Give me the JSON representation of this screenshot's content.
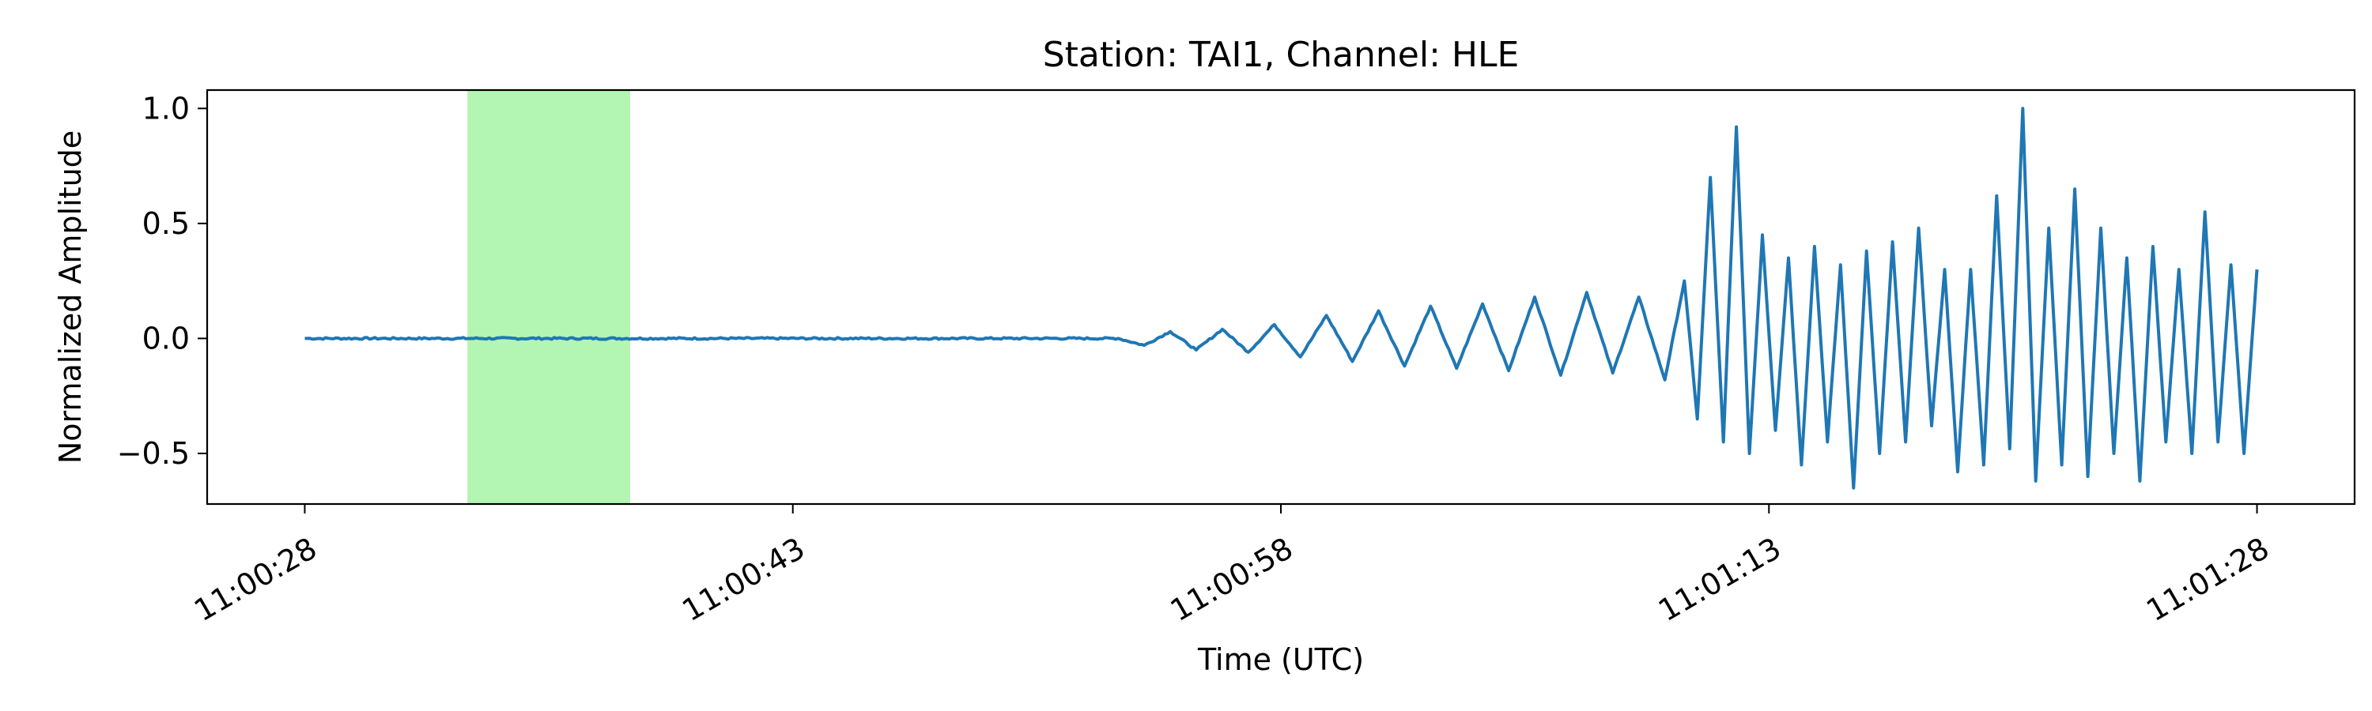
{
  "chart_data": {
    "type": "line",
    "title": "Station: TAI1, Channel: HLE",
    "xlabel": "Time (UTC)",
    "ylabel": "Normalized Amplitude",
    "x_unit": "seconds after 11:00:28 UTC",
    "xlim": [
      -3,
      63
    ],
    "ylim": [
      -0.72,
      1.08
    ],
    "x_ticks": [
      {
        "value": 0,
        "label": "11:00:28"
      },
      {
        "value": 15,
        "label": "11:00:43"
      },
      {
        "value": 30,
        "label": "11:00:58"
      },
      {
        "value": 45,
        "label": "11:01:13"
      },
      {
        "value": 60,
        "label": "11:01:28"
      }
    ],
    "y_ticks": [
      {
        "value": 1.0,
        "label": "1.0"
      },
      {
        "value": 0.5,
        "label": "0.5"
      },
      {
        "value": 0.0,
        "label": "0.0"
      },
      {
        "value": -0.5,
        "label": "−0.5"
      }
    ],
    "highlight_span": {
      "x_start": 5.0,
      "x_end": 10.0,
      "color": "#b3f5b3"
    },
    "grid": false,
    "series": [
      {
        "color": "#1f77b4",
        "x": [
          0,
          25.0,
          25.8,
          26.6,
          27.4,
          28.2,
          29.0,
          29.8,
          30.6,
          31.4,
          32.2,
          33.0,
          33.8,
          34.6,
          35.4,
          36.2,
          37.0,
          37.8,
          38.6,
          39.4,
          40.2,
          41.0,
          41.8,
          42.4,
          42.8,
          43.2,
          43.6,
          44.0,
          44.4,
          44.8,
          45.2,
          45.6,
          46.0,
          46.4,
          46.8,
          47.2,
          47.6,
          48.0,
          48.4,
          48.8,
          49.2,
          49.6,
          50.0,
          50.4,
          50.8,
          51.2,
          51.6,
          52.0,
          52.4,
          52.8,
          53.2,
          53.6,
          54.0,
          54.4,
          54.8,
          55.2,
          55.6,
          56.0,
          56.4,
          56.8,
          57.2,
          57.6,
          58.0,
          58.4,
          58.8,
          59.2,
          59.6,
          60.0
        ],
        "y": [
          0.0,
          0.0,
          -0.03,
          0.03,
          -0.05,
          0.04,
          -0.06,
          0.06,
          -0.08,
          0.1,
          -0.1,
          0.12,
          -0.12,
          0.14,
          -0.13,
          0.15,
          -0.14,
          0.18,
          -0.16,
          0.2,
          -0.15,
          0.18,
          -0.18,
          0.25,
          -0.35,
          0.7,
          -0.45,
          0.92,
          -0.5,
          0.45,
          -0.4,
          0.35,
          -0.55,
          0.4,
          -0.45,
          0.32,
          -0.65,
          0.38,
          -0.5,
          0.42,
          -0.45,
          0.48,
          -0.38,
          0.3,
          -0.58,
          0.3,
          -0.55,
          0.62,
          -0.48,
          1.0,
          -0.62,
          0.48,
          -0.55,
          0.65,
          -0.6,
          0.48,
          -0.5,
          0.35,
          -0.62,
          0.4,
          -0.45,
          0.3,
          -0.5,
          0.55,
          -0.45,
          0.32,
          -0.5,
          0.3
        ]
      }
    ]
  }
}
